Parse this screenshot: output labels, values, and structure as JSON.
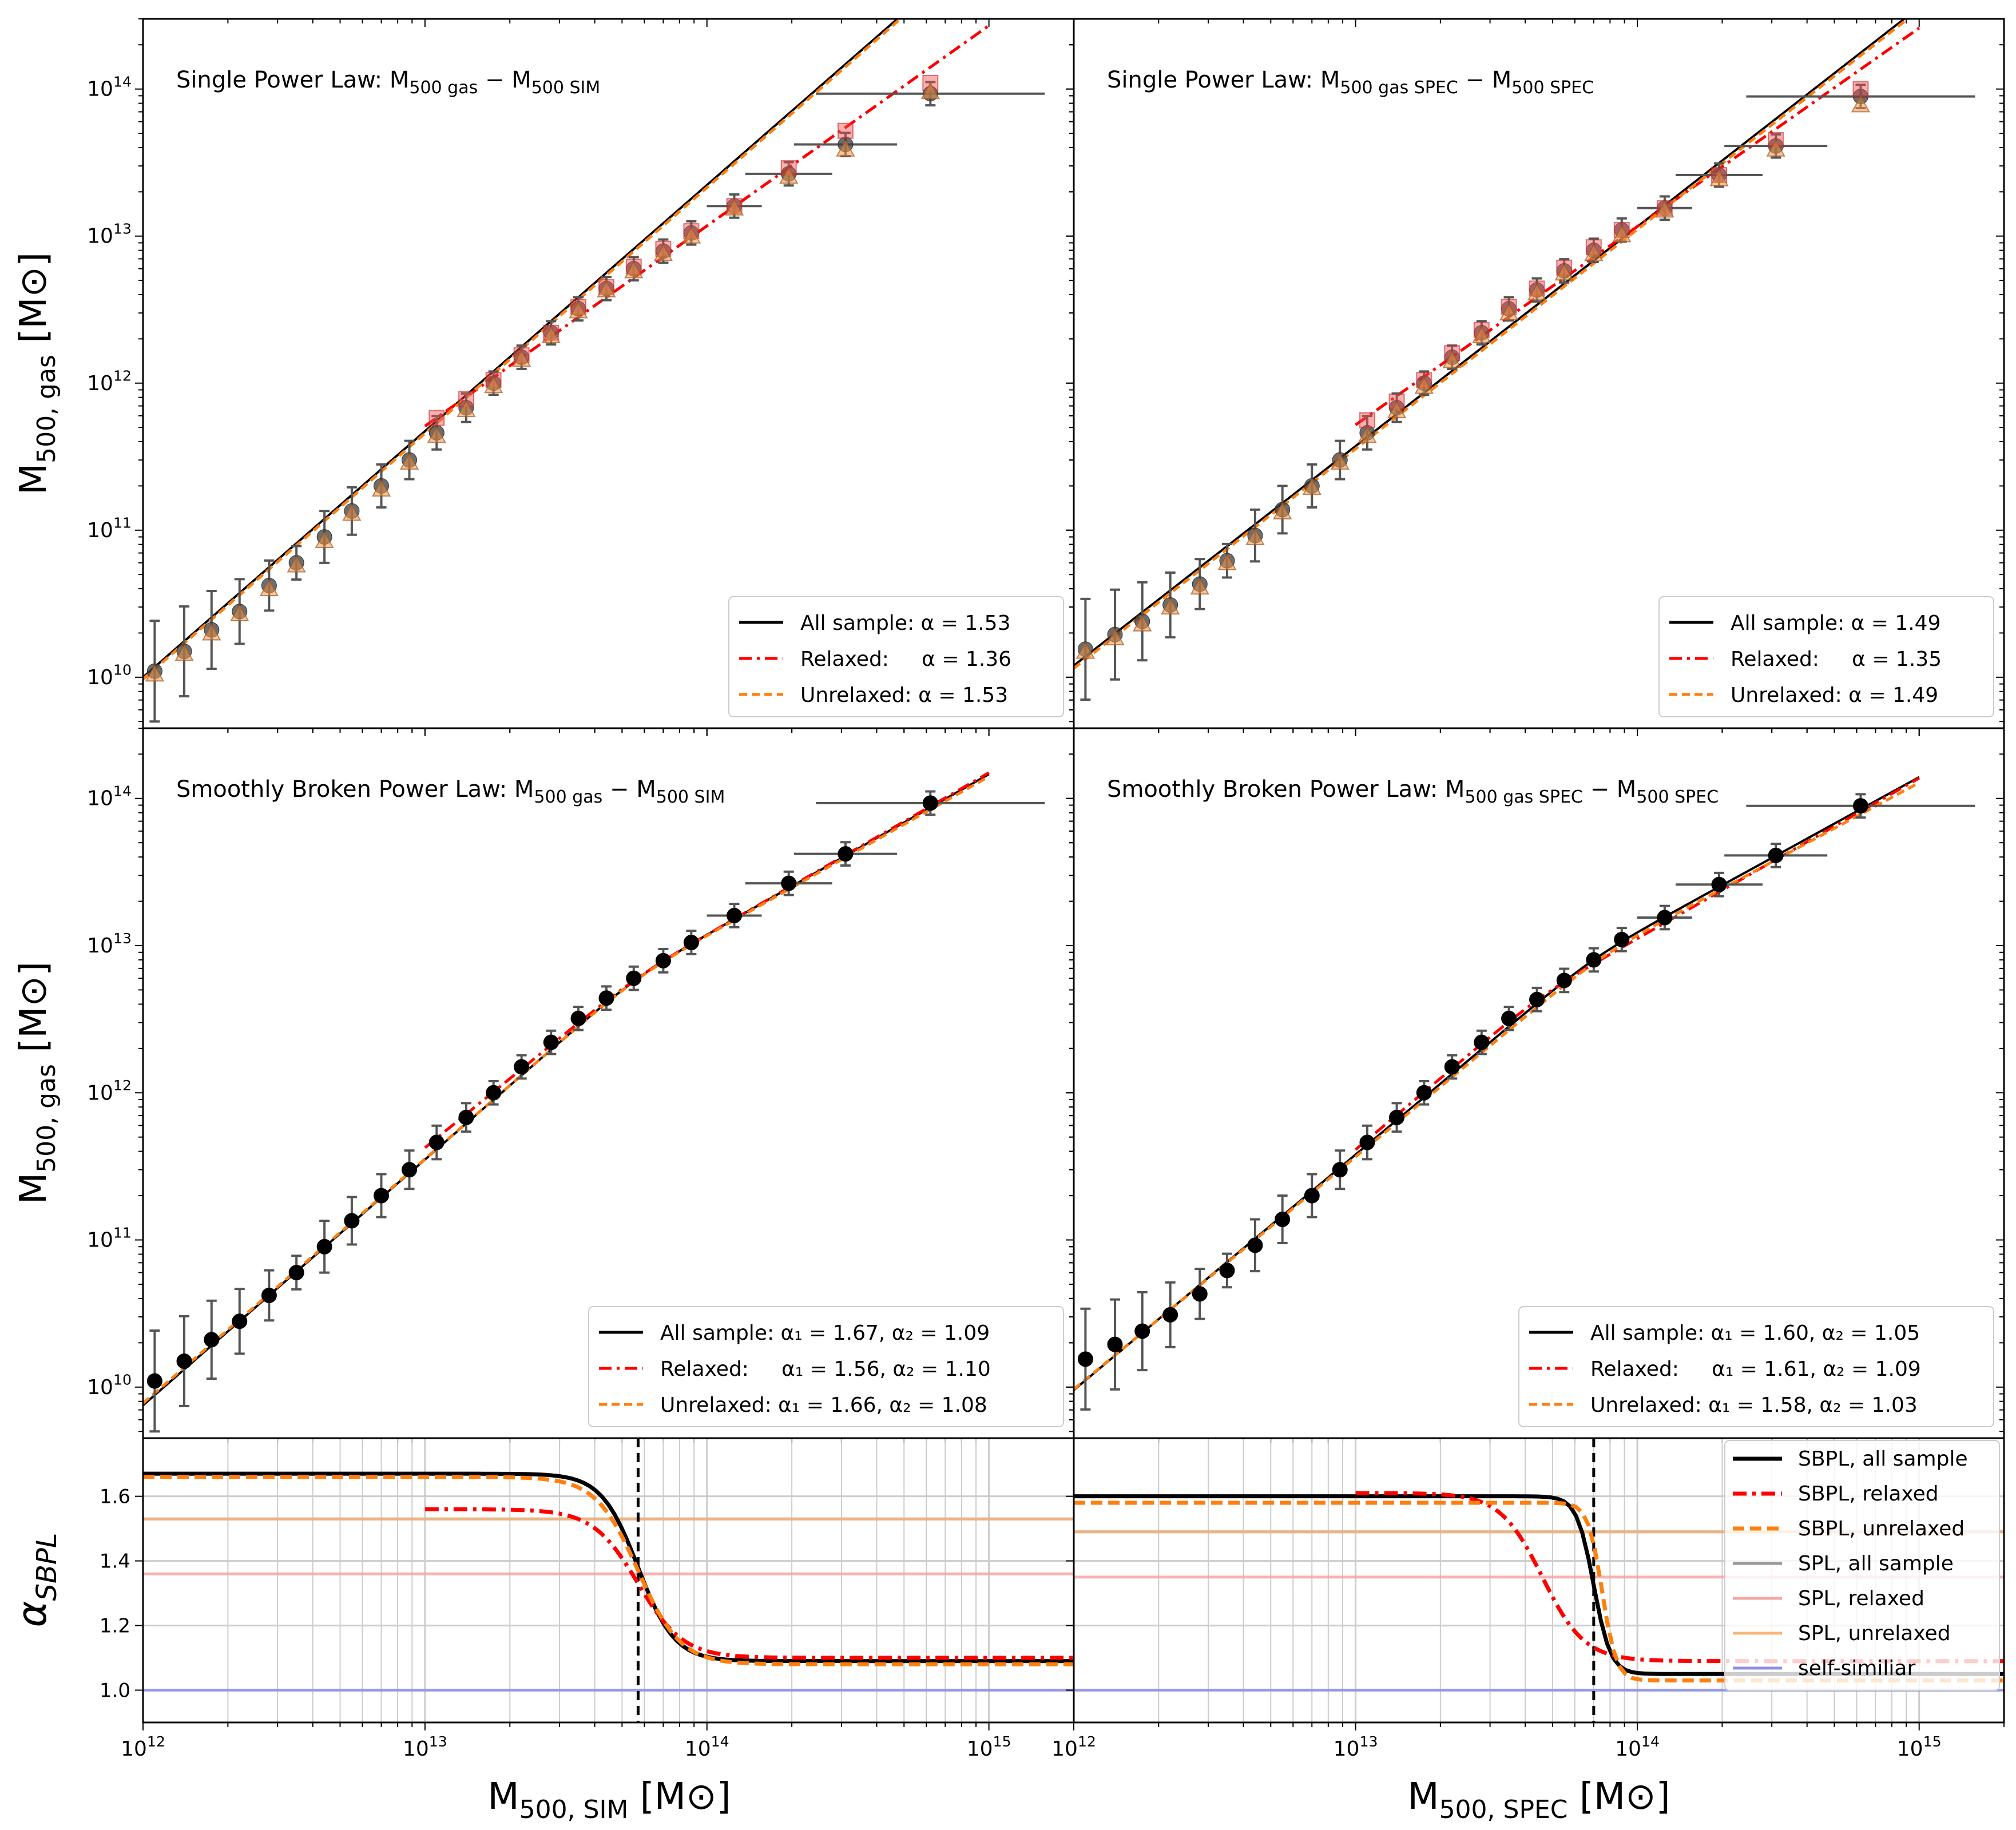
{
  "figure": {
    "xlabel_left": "M",
    "xlabel_left_sub": "500, SIM",
    "xlabel_right": "M",
    "xlabel_right_sub": "500, SPEC",
    "xlabel_unit": "[M⊙]",
    "ylabel_main": "M",
    "ylabel_main_sub": "500, gas",
    "ylabel_unit": "[M⊙]",
    "ylabel_alpha": "α",
    "ylabel_alpha_sub": "SBPL"
  },
  "chart_data": [
    {
      "id": "top-left",
      "type": "scatter",
      "title": "Single Power Law: M500gas − M500SIM",
      "title_main": "Single Power Law: M",
      "title_sub1": "500 gas",
      "title_mid": " − M",
      "title_sub2": "500 SIM",
      "xscale": "log",
      "yscale": "log",
      "xlim": [
        1000000000000.0,
        2000000000000000.0
      ],
      "ylim": [
        4500000000.0,
        300000000000000.0
      ],
      "yticks": [
        "10^10",
        "10^11",
        "10^12",
        "10^13",
        "10^14"
      ],
      "series": [
        {
          "name": "All sample",
          "x": [
            1100000000000.0,
            1400000000000.0,
            1750000000000.0,
            2200000000000.0,
            2800000000000.0,
            3500000000000.0,
            4400000000000.0,
            5500000000000.0,
            7000000000000.0,
            8800000000000.0,
            11000000000000.0,
            14000000000000.0,
            17500000000000.0,
            22000000000000.0,
            28000000000000.0,
            35000000000000.0,
            44000000000000.0,
            55000000000000.0,
            70000000000000.0,
            88000000000000.0,
            125000000000000.0,
            195000000000000.0,
            310000000000000.0,
            620000000000000.0
          ],
          "y": [
            11000000000.0,
            15000000000.0,
            21000000000.0,
            28000000000.0,
            42000000000.0,
            60000000000.0,
            90000000000.0,
            135000000000.0,
            200000000000.0,
            300000000000.0,
            460000000000.0,
            680000000000.0,
            1000000000000.0,
            1500000000000.0,
            2200000000000.0,
            3200000000000.0,
            4400000000000.0,
            6000000000000.0,
            7900000000000.0,
            10500000000000.0,
            16000000000000.0,
            26500000000000.0,
            42000000000000.0,
            93000000000000.0
          ]
        },
        {
          "name": "Relaxed",
          "x": [
            11000000000000.0,
            14000000000000.0,
            17500000000000.0,
            22000000000000.0,
            28000000000000.0,
            35000000000000.0,
            44000000000000.0,
            55000000000000.0,
            70000000000000.0,
            88000000000000.0,
            125000000000000.0,
            195000000000000.0,
            310000000000000.0,
            620000000000000.0
          ],
          "y": [
            580000000000.0,
            780000000000.0,
            1050000000000.0,
            1550000000000.0,
            2200000000000.0,
            3300000000000.0,
            4500000000000.0,
            6200000000000.0,
            8200000000000.0,
            10800000000000.0,
            16000000000000.0,
            29000000000000.0,
            52000000000000.0,
            110000000000000.0
          ]
        },
        {
          "name": "Unrelaxed",
          "x": [
            1100000000000.0,
            1400000000000.0,
            1750000000000.0,
            2200000000000.0,
            2800000000000.0,
            3500000000000.0,
            4400000000000.0,
            5500000000000.0,
            7000000000000.0,
            8800000000000.0,
            11000000000000.0,
            14000000000000.0,
            17500000000000.0,
            22000000000000.0,
            28000000000000.0,
            35000000000000.0,
            44000000000000.0,
            55000000000000.0,
            70000000000000.0,
            88000000000000.0,
            125000000000000.0,
            195000000000000.0,
            310000000000000.0,
            620000000000000.0
          ],
          "y": [
            10500000000.0,
            14500000000.0,
            20000000000.0,
            27000000000.0,
            40000000000.0,
            58000000000.0,
            85000000000.0,
            130000000000.0,
            190000000000.0,
            290000000000.0,
            440000000000.0,
            660000000000.0,
            960000000000.0,
            1450000000000.0,
            2100000000000.0,
            3100000000000.0,
            4300000000000.0,
            5800000000000.0,
            7600000000000.0,
            10000000000000.0,
            15500000000000.0,
            25500000000000.0,
            39000000000000.0,
            96000000000000.0
          ]
        }
      ],
      "fits": [
        {
          "name": "All sample",
          "alpha": 1.53,
          "x": [
            1000000000000.0,
            2000000000000000.0
          ],
          "y": [
            10000000000.0,
            3340000000000000.0
          ]
        },
        {
          "name": "Relaxed",
          "alpha": 1.36,
          "x": [
            10000000000000.0,
            1000000000000000.0
          ],
          "y": [
            510000000000.0,
            270000000000000.0
          ]
        },
        {
          "name": "Unrelaxed",
          "alpha": 1.53,
          "x": [
            1000000000000.0,
            2000000000000000.0
          ],
          "y": [
            9700000000.0,
            3200000000000000.0
          ]
        }
      ],
      "legend": [
        "All sample: α = 1.53",
        "Relaxed:     α = 1.36",
        "Unrelaxed: α = 1.53"
      ],
      "legend_position": "lower-right"
    },
    {
      "id": "top-right",
      "type": "scatter",
      "title": "Single Power Law: M500gasSPEC − M500SPEC",
      "title_main": "Single Power Law: M",
      "title_sub1": "500 gas SPEC",
      "title_mid": " − M",
      "title_sub2": "500 SPEC",
      "xscale": "log",
      "yscale": "log",
      "xlim": [
        1000000000000.0,
        2000000000000000.0
      ],
      "ylim": [
        4500000000.0,
        300000000000000.0
      ],
      "series": [
        {
          "name": "All sample",
          "x": [
            1100000000000.0,
            1400000000000.0,
            1750000000000.0,
            2200000000000.0,
            2800000000000.0,
            3500000000000.0,
            4400000000000.0,
            5500000000000.0,
            7000000000000.0,
            8800000000000.0,
            11000000000000.0,
            14000000000000.0,
            17500000000000.0,
            22000000000000.0,
            28000000000000.0,
            35000000000000.0,
            44000000000000.0,
            55000000000000.0,
            70000000000000.0,
            88000000000000.0,
            125000000000000.0,
            195000000000000.0,
            310000000000000.0,
            620000000000000.0
          ],
          "y": [
            15500000000.0,
            19500000000.0,
            24000000000.0,
            31000000000.0,
            43000000000.0,
            62000000000.0,
            92000000000.0,
            138000000000.0,
            200000000000.0,
            300000000000.0,
            460000000000.0,
            680000000000.0,
            1000000000000.0,
            1500000000000.0,
            2200000000000.0,
            3200000000000.0,
            4300000000000.0,
            5800000000000.0,
            8000000000000.0,
            11000000000000.0,
            15500000000000.0,
            26000000000000.0,
            41000000000000.0,
            89000000000000.0
          ]
        },
        {
          "name": "Relaxed",
          "x": [
            11000000000000.0,
            14000000000000.0,
            17500000000000.0,
            22000000000000.0,
            28000000000000.0,
            35000000000000.0,
            44000000000000.0,
            55000000000000.0,
            70000000000000.0,
            88000000000000.0,
            125000000000000.0,
            195000000000000.0,
            310000000000000.0,
            620000000000000.0
          ],
          "y": [
            560000000000.0,
            750000000000.0,
            1050000000000.0,
            1600000000000.0,
            2300000000000.0,
            3300000000000.0,
            4400000000000.0,
            6100000000000.0,
            8400000000000.0,
            11000000000000.0,
            15500000000000.0,
            26000000000000.0,
            45000000000000.0,
            100000000000000.0
          ]
        },
        {
          "name": "Unrelaxed",
          "x": [
            1100000000000.0,
            1400000000000.0,
            1750000000000.0,
            2200000000000.0,
            2800000000000.0,
            3500000000000.0,
            4400000000000.0,
            5500000000000.0,
            7000000000000.0,
            8800000000000.0,
            11000000000000.0,
            14000000000000.0,
            17500000000000.0,
            22000000000000.0,
            28000000000000.0,
            35000000000000.0,
            44000000000000.0,
            55000000000000.0,
            70000000000000.0,
            88000000000000.0,
            125000000000000.0,
            195000000000000.0,
            310000000000000.0,
            620000000000000.0
          ],
          "y": [
            15000000000.0,
            18500000000.0,
            23000000000.0,
            30000000000.0,
            41000000000.0,
            60000000000.0,
            89000000000.0,
            133000000000.0,
            195000000000.0,
            290000000000.0,
            440000000000.0,
            650000000000.0,
            950000000000.0,
            1420000000000.0,
            2100000000000.0,
            3000000000000.0,
            4100000000000.0,
            5600000000000.0,
            7600000000000.0,
            10200000000000.0,
            15000000000000.0,
            24500000000000.0,
            39000000000000.0,
            78000000000000.0
          ]
        }
      ],
      "fits": [
        {
          "name": "All sample",
          "alpha": 1.49,
          "x": [
            1000000000000.0,
            1000000000000000.0
          ],
          "y": [
            12000000000.0,
            360000000000000.0
          ]
        },
        {
          "name": "Relaxed",
          "alpha": 1.35,
          "x": [
            10000000000000.0,
            1000000000000000.0
          ],
          "y": [
            520000000000.0,
            260000000000000.0
          ]
        },
        {
          "name": "Unrelaxed",
          "alpha": 1.49,
          "x": [
            1000000000000.0,
            1000000000000000.0
          ],
          "y": [
            11500000000.0,
            345000000000000.0
          ]
        }
      ],
      "legend": [
        "All sample: α = 1.49",
        "Relaxed:     α = 1.35",
        "Unrelaxed: α = 1.49"
      ],
      "legend_position": "lower-right"
    },
    {
      "id": "mid-left",
      "type": "scatter",
      "title": "Smoothly Broken Power Law: M500gas − M500SIM",
      "title_main": "Smoothly Broken Power Law: M",
      "title_sub1": "500 gas",
      "title_mid": " − M",
      "title_sub2": "500 SIM",
      "xscale": "log",
      "yscale": "log",
      "xlim": [
        1000000000000.0,
        2000000000000000.0
      ],
      "ylim": [
        4500000000.0,
        300000000000000.0
      ],
      "series": [
        {
          "name": "All sample",
          "x": [
            1100000000000.0,
            1400000000000.0,
            1750000000000.0,
            2200000000000.0,
            2800000000000.0,
            3500000000000.0,
            4400000000000.0,
            5500000000000.0,
            7000000000000.0,
            8800000000000.0,
            11000000000000.0,
            14000000000000.0,
            17500000000000.0,
            22000000000000.0,
            28000000000000.0,
            35000000000000.0,
            44000000000000.0,
            55000000000000.0,
            70000000000000.0,
            88000000000000.0,
            125000000000000.0,
            195000000000000.0,
            310000000000000.0,
            620000000000000.0
          ],
          "y": [
            11000000000.0,
            15000000000.0,
            21000000000.0,
            28000000000.0,
            42000000000.0,
            60000000000.0,
            90000000000.0,
            135000000000.0,
            200000000000.0,
            300000000000.0,
            460000000000.0,
            680000000000.0,
            1000000000000.0,
            1500000000000.0,
            2200000000000.0,
            3200000000000.0,
            4400000000000.0,
            6000000000000.0,
            7900000000000.0,
            10500000000000.0,
            16000000000000.0,
            26500000000000.0,
            42000000000000.0,
            93000000000000.0
          ]
        }
      ],
      "fits": [
        {
          "name": "All sample",
          "alpha1": 1.67,
          "alpha2": 1.09,
          "xb": 57000000000000.0,
          "yb": 6000000000000.0
        },
        {
          "name": "Relaxed",
          "alpha1": 1.56,
          "alpha2": 1.1,
          "xb": 57000000000000.0,
          "yb": 6050000000000.0,
          "xmin": 10000000000000.0
        },
        {
          "name": "Unrelaxed",
          "alpha1": 1.66,
          "alpha2": 1.08,
          "xb": 57000000000000.0,
          "yb": 5950000000000.0
        }
      ],
      "legend": [
        "All sample: α₁ = 1.67, α₂ = 1.09",
        "Relaxed:     α₁ = 1.56, α₂ = 1.10",
        "Unrelaxed: α₁ = 1.66, α₂ = 1.08"
      ],
      "legend_position": "lower-right"
    },
    {
      "id": "mid-right",
      "type": "scatter",
      "title": "Smoothly Broken Power Law: M500gasSPEC − M500SPEC",
      "title_main": "Smoothly Broken Power Law: M",
      "title_sub1": "500 gas SPEC",
      "title_mid": " − M",
      "title_sub2": "500 SPEC",
      "xscale": "log",
      "yscale": "log",
      "xlim": [
        1000000000000.0,
        2000000000000000.0
      ],
      "ylim": [
        4500000000.0,
        300000000000000.0
      ],
      "series": [
        {
          "name": "All sample",
          "x": [
            1100000000000.0,
            1400000000000.0,
            1750000000000.0,
            2200000000000.0,
            2800000000000.0,
            3500000000000.0,
            4400000000000.0,
            5500000000000.0,
            7000000000000.0,
            8800000000000.0,
            11000000000000.0,
            14000000000000.0,
            17500000000000.0,
            22000000000000.0,
            28000000000000.0,
            35000000000000.0,
            44000000000000.0,
            55000000000000.0,
            70000000000000.0,
            88000000000000.0,
            125000000000000.0,
            195000000000000.0,
            310000000000000.0,
            620000000000000.0
          ],
          "y": [
            15500000000.0,
            19500000000.0,
            24000000000.0,
            31000000000.0,
            43000000000.0,
            62000000000.0,
            92000000000.0,
            138000000000.0,
            200000000000.0,
            300000000000.0,
            460000000000.0,
            680000000000.0,
            1000000000000.0,
            1500000000000.0,
            2200000000000.0,
            3200000000000.0,
            4300000000000.0,
            5800000000000.0,
            8000000000000.0,
            11000000000000.0,
            15500000000000.0,
            26000000000000.0,
            41000000000000.0,
            89000000000000.0
          ]
        }
      ],
      "fits": [
        {
          "name": "All sample",
          "alpha1": 1.6,
          "alpha2": 1.05,
          "xb": 70000000000000.0,
          "yb": 8000000000000.0
        },
        {
          "name": "Relaxed",
          "alpha1": 1.61,
          "alpha2": 1.09,
          "xb": 46000000000000.0,
          "yb": 4500000000000.0,
          "xmin": 10000000000000.0
        },
        {
          "name": "Unrelaxed",
          "alpha1": 1.58,
          "alpha2": 1.03,
          "xb": 75000000000000.0,
          "yb": 8300000000000.0
        }
      ],
      "legend": [
        "All sample: α₁ = 1.60, α₂ = 1.05",
        "Relaxed:     α₁ = 1.61, α₂ = 1.09",
        "Unrelaxed: α₁ = 1.58, α₂ = 1.03"
      ],
      "legend_position": "lower-right"
    },
    {
      "id": "bottom-left",
      "type": "line",
      "xscale": "log",
      "xlim": [
        1000000000000.0,
        2000000000000000.0
      ],
      "ylim": [
        0.9,
        1.78
      ],
      "yticks": [
        1.0,
        1.2,
        1.4,
        1.6
      ],
      "xticks": [
        "10^12",
        "10^13",
        "10^14",
        "10^15"
      ],
      "sbpl": [
        {
          "name": "SBPL, all sample",
          "a1": 1.67,
          "a2": 1.09,
          "xb": 57000000000000.0,
          "w": 0.13
        },
        {
          "name": "SBPL, relaxed",
          "a1": 1.56,
          "a2": 1.1,
          "xb": 57000000000000.0,
          "w": 0.16,
          "xmin": 10000000000000.0
        },
        {
          "name": "SBPL, unrelaxed",
          "a1": 1.66,
          "a2": 1.08,
          "xb": 57000000000000.0,
          "w": 0.15
        }
      ],
      "spl": [
        {
          "name": "SPL, all sample",
          "value": 1.53
        },
        {
          "name": "SPL, relaxed",
          "value": 1.36
        },
        {
          "name": "SPL, unrelaxed",
          "value": 1.53
        },
        {
          "name": "self-similiar",
          "value": 1.0
        }
      ],
      "vline": 57000000000000.0
    },
    {
      "id": "bottom-right",
      "type": "line",
      "xscale": "log",
      "xlim": [
        1000000000000.0,
        2000000000000000.0
      ],
      "ylim": [
        0.9,
        1.78
      ],
      "xticks": [
        "10^12",
        "10^13",
        "10^14",
        "10^15"
      ],
      "sbpl": [
        {
          "name": "SBPL, all sample",
          "a1": 1.6,
          "a2": 1.05,
          "xb": 70000000000000.0,
          "w": 0.06
        },
        {
          "name": "SBPL, relaxed",
          "a1": 1.61,
          "a2": 1.09,
          "xb": 46000000000000.0,
          "w": 0.15,
          "xmin": 10000000000000.0
        },
        {
          "name": "SBPL, unrelaxed",
          "a1": 1.58,
          "a2": 1.03,
          "xb": 75000000000000.0,
          "w": 0.05
        }
      ],
      "spl": [
        {
          "name": "SPL, all sample",
          "value": 1.49
        },
        {
          "name": "SPL, relaxed",
          "value": 1.35
        },
        {
          "name": "SPL, unrelaxed",
          "value": 1.49
        },
        {
          "name": "self-similiar",
          "value": 1.0
        }
      ],
      "vline": 70000000000000.0,
      "legend": [
        "SBPL, all sample",
        "SBPL, relaxed",
        "SBPL, unrelaxed",
        "SPL, all sample",
        "SPL, relaxed",
        "SPL, unrelaxed",
        "self-similiar"
      ],
      "legend_position": "top-right"
    }
  ],
  "colors": {
    "all": "#000000",
    "relaxed": "#ff0000",
    "unrelaxed": "#ff7f0e",
    "spl_all": "#999999",
    "spl_relaxed": "#f4a6a6",
    "spl_unrelaxed": "#f7b77a",
    "self": "#8f8fe6",
    "errbar": "#555555",
    "grid": "#cccccc"
  }
}
